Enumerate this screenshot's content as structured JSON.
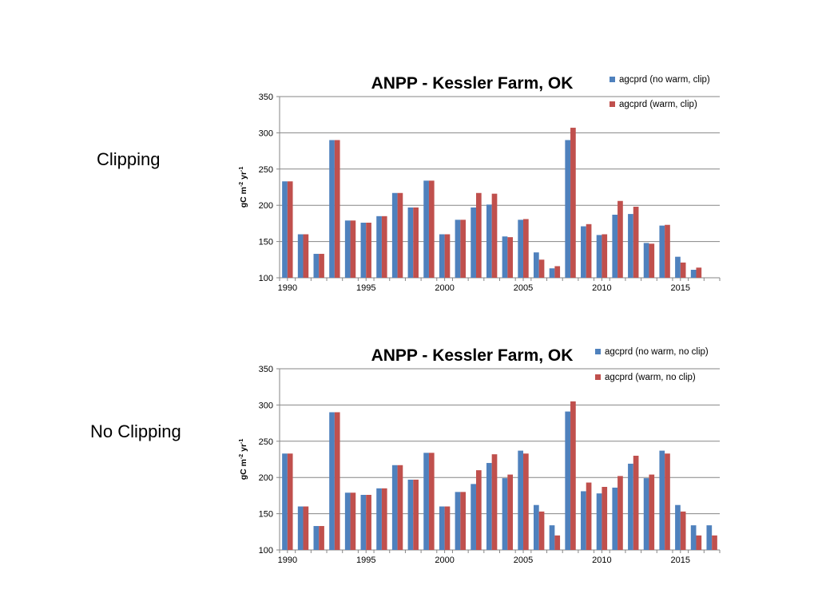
{
  "slide": {
    "label_top": "Clipping",
    "label_bottom": "No Clipping"
  },
  "chart_data": [
    {
      "type": "bar",
      "title": "ANPP - Kessler Farm, OK",
      "ylabel": "gC m-2 yr-1",
      "ylim": [
        100,
        350
      ],
      "yticks": [
        100,
        150,
        200,
        250,
        300,
        350
      ],
      "xticks": [
        1990,
        1995,
        2000,
        2005,
        2010,
        2015
      ],
      "grid": true,
      "legend_position": "top-right",
      "x": [
        1990,
        1991,
        1992,
        1993,
        1994,
        1995,
        1996,
        1997,
        1998,
        1999,
        2000,
        2001,
        2002,
        2003,
        2004,
        2005,
        2006,
        2007,
        2008,
        2009,
        2010,
        2011,
        2012,
        2013,
        2014,
        2015,
        2016
      ],
      "series": [
        {
          "name": "agcprd (no warm, clip)",
          "color": "#4F81BD",
          "values": [
            233,
            160,
            133,
            290,
            179,
            176,
            185,
            217,
            197,
            234,
            160,
            180,
            197,
            201,
            157,
            180,
            135,
            113,
            290,
            171,
            159,
            187,
            188,
            148,
            172,
            129,
            111
          ]
        },
        {
          "name": "agcprd (warm, clip)",
          "color": "#C0504D",
          "values": [
            233,
            160,
            133,
            290,
            179,
            176,
            185,
            217,
            197,
            234,
            160,
            180,
            217,
            216,
            156,
            181,
            125,
            116,
            307,
            174,
            160,
            206,
            198,
            147,
            173,
            121,
            114
          ]
        }
      ]
    },
    {
      "type": "bar",
      "title": "ANPP - Kessler Farm, OK",
      "ylabel": "gC m-2 yr-1",
      "ylim": [
        100,
        350
      ],
      "yticks": [
        100,
        150,
        200,
        250,
        300,
        350
      ],
      "xticks": [
        1990,
        1995,
        2000,
        2005,
        2010,
        2015
      ],
      "grid": true,
      "legend_position": "top-right",
      "x": [
        1990,
        1991,
        1992,
        1993,
        1994,
        1995,
        1996,
        1997,
        1998,
        1999,
        2000,
        2001,
        2002,
        2003,
        2004,
        2005,
        2006,
        2007,
        2008,
        2009,
        2010,
        2011,
        2012,
        2013,
        2014,
        2015,
        2016,
        2017
      ],
      "series": [
        {
          "name": "agcprd (no warm, no clip)",
          "color": "#4F81BD",
          "values": [
            233,
            160,
            133,
            290,
            179,
            176,
            185,
            217,
            197,
            234,
            160,
            180,
            191,
            220,
            199,
            237,
            162,
            134,
            291,
            181,
            178,
            186,
            219,
            199,
            237,
            162,
            134,
            134
          ]
        },
        {
          "name": "agcprd (warm, no clip)",
          "color": "#C0504D",
          "values": [
            233,
            160,
            133,
            290,
            179,
            176,
            185,
            217,
            197,
            234,
            160,
            180,
            210,
            232,
            204,
            233,
            153,
            120,
            305,
            193,
            187,
            202,
            230,
            204,
            233,
            153,
            120,
            120
          ]
        }
      ]
    }
  ]
}
